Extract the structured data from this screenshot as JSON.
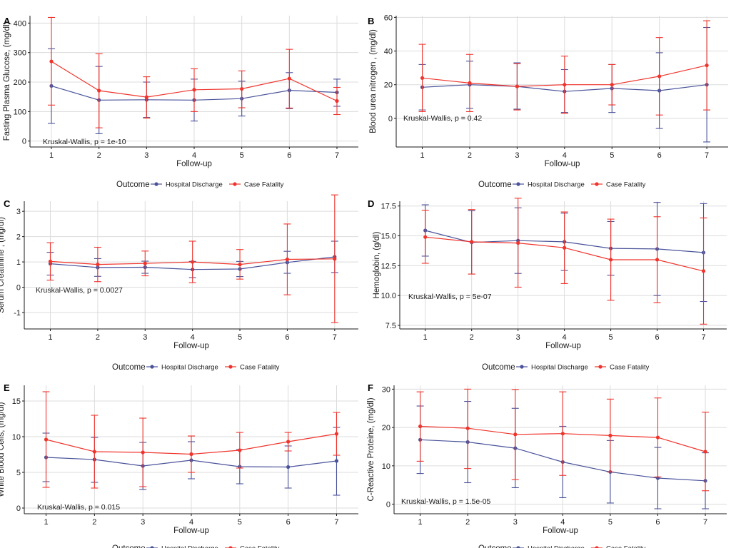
{
  "colors": {
    "hospital_discharge": "#4a539a",
    "case_fatality": "#f0342c",
    "grid": "#dcdcdc",
    "axis": "#1a1a1a"
  },
  "legend": {
    "title": "Outcome",
    "items": [
      "Hospital Discharge",
      "Case Fatality"
    ]
  },
  "chart_data": [
    {
      "panel": "A",
      "type": "line",
      "grid": true,
      "legend_position": "bottom",
      "xlabel": "Follow-up",
      "ylabel": "Fasting Plasma Glucose, (mg/dl)",
      "annotation": "Kruskal-Wallis, p = 1e-10",
      "x": [
        1,
        2,
        3,
        4,
        5,
        6,
        7
      ],
      "xlim": [
        0.55,
        7.45
      ],
      "ylim": [
        -20,
        425
      ],
      "yticks": [
        0,
        100,
        200,
        300,
        400
      ],
      "ytick_labels": [
        "0",
        "100",
        "200",
        "300",
        "400"
      ],
      "series": [
        {
          "name": "Hospital Discharge",
          "values": [
            187,
            139,
            140,
            139,
            144,
            172,
            165
          ],
          "lower": [
            60,
            25,
            80,
            68,
            85,
            110,
            118
          ],
          "upper": [
            313,
            253,
            200,
            210,
            203,
            232,
            210
          ]
        },
        {
          "name": "Case Fatality",
          "values": [
            270,
            171,
            149,
            174,
            177,
            212,
            136
          ],
          "lower": [
            122,
            45,
            78,
            100,
            113,
            112,
            90
          ],
          "upper": [
            419,
            296,
            218,
            245,
            238,
            311,
            182
          ]
        }
      ]
    },
    {
      "panel": "B",
      "type": "line",
      "grid": true,
      "legend_position": "bottom",
      "xlabel": "Follow-up",
      "ylabel": "Blood urea nitrogen , (mg/dl)",
      "annotation": "Kruskal-Wallis, p = 0.42",
      "x": [
        1,
        2,
        3,
        4,
        5,
        6,
        7
      ],
      "xlim": [
        0.45,
        7.45
      ],
      "ylim": [
        -17,
        61
      ],
      "yticks": [
        0,
        20,
        40,
        60
      ],
      "ytick_labels": [
        "0",
        "20",
        "40",
        "60"
      ],
      "series": [
        {
          "name": "Hospital Discharge",
          "values": [
            18.5,
            20,
            19,
            16,
            17.8,
            16.5,
            20
          ],
          "lower": [
            5,
            6,
            5.5,
            3.5,
            3.5,
            -6,
            -14
          ],
          "upper": [
            32,
            34,
            33,
            29,
            32,
            39,
            54
          ]
        },
        {
          "name": "Case Fatality",
          "values": [
            24,
            21,
            19,
            20,
            20,
            25,
            31.5
          ],
          "lower": [
            4,
            4,
            5,
            3,
            8,
            2,
            5
          ],
          "upper": [
            44,
            38,
            32.5,
            37,
            32,
            48,
            58
          ]
        }
      ]
    },
    {
      "panel": "C",
      "type": "line",
      "grid": true,
      "legend_position": "bottom",
      "xlabel": "Follow-up",
      "ylabel": "Serum Creatinine , (mg/dl)",
      "annotation": "Kruskal-Wallis, p = 0.0027",
      "x": [
        1,
        2,
        3,
        4,
        5,
        6,
        7
      ],
      "xlim": [
        0.45,
        7.5
      ],
      "ylim": [
        -1.65,
        3.4
      ],
      "yticks": [
        -1,
        0,
        1,
        2,
        3
      ],
      "ytick_labels": [
        "-1",
        "0",
        "1",
        "2",
        "3"
      ],
      "series": [
        {
          "name": "Hospital Discharge",
          "values": [
            0.93,
            0.78,
            0.79,
            0.7,
            0.72,
            0.98,
            1.2
          ],
          "lower": [
            0.48,
            0.43,
            0.55,
            0.38,
            0.42,
            0.55,
            0.58
          ],
          "upper": [
            1.38,
            1.13,
            1.03,
            1.02,
            1.02,
            1.42,
            1.82
          ]
        },
        {
          "name": "Case Fatality",
          "values": [
            1.02,
            0.9,
            0.94,
            1.0,
            0.9,
            1.1,
            1.12
          ],
          "lower": [
            0.28,
            0.22,
            0.45,
            0.18,
            0.32,
            -0.3,
            -1.4
          ],
          "upper": [
            1.76,
            1.58,
            1.43,
            1.82,
            1.49,
            2.5,
            3.65
          ]
        }
      ]
    },
    {
      "panel": "D",
      "type": "line",
      "grid": true,
      "legend_position": "bottom",
      "xlabel": "Follow-up",
      "ylabel": "Hemoglobin, (g/dl)",
      "annotation": "Kruskal-Wallis, p = 5e-07",
      "x": [
        1,
        2,
        3,
        4,
        5,
        6,
        7
      ],
      "xlim": [
        0.45,
        7.5
      ],
      "ylim": [
        7.2,
        17.9
      ],
      "yticks": [
        7.5,
        10,
        12.5,
        15,
        17.5
      ],
      "ytick_labels": [
        "7.5",
        "10.0",
        "12.5",
        "15.0",
        "17.5"
      ],
      "series": [
        {
          "name": "Hospital Discharge",
          "values": [
            15.45,
            14.45,
            14.6,
            14.5,
            13.95,
            13.9,
            13.6
          ],
          "lower": [
            13.3,
            11.8,
            11.85,
            12.1,
            11.7,
            10.0,
            9.5
          ],
          "upper": [
            17.6,
            17.1,
            17.35,
            16.9,
            16.2,
            17.8,
            17.7
          ]
        },
        {
          "name": "Case Fatality",
          "values": [
            14.9,
            14.5,
            14.4,
            14.0,
            13.0,
            13.0,
            12.05
          ],
          "lower": [
            12.7,
            11.8,
            10.7,
            11.0,
            9.6,
            9.4,
            7.6
          ],
          "upper": [
            17.15,
            17.2,
            18.15,
            17.0,
            16.4,
            16.6,
            16.5
          ]
        }
      ]
    },
    {
      "panel": "E",
      "type": "line",
      "grid": true,
      "legend_position": "bottom",
      "xlabel": "Follow-up",
      "ylabel": "White Blood Cells, (mg/dl)",
      "annotation": "Kruskal-Wallis, p = 0.015",
      "x": [
        1,
        2,
        3,
        4,
        5,
        6,
        7
      ],
      "xlim": [
        0.55,
        7.45
      ],
      "ylim": [
        -0.8,
        17.2
      ],
      "yticks": [
        0,
        5,
        10,
        15
      ],
      "ytick_labels": [
        "0",
        "5",
        "10",
        "15"
      ],
      "series": [
        {
          "name": "Hospital Discharge",
          "values": [
            7.1,
            6.8,
            5.9,
            6.7,
            5.8,
            5.75,
            6.6
          ],
          "lower": [
            3.7,
            3.6,
            2.6,
            4.1,
            3.4,
            2.8,
            1.8
          ],
          "upper": [
            10.5,
            9.9,
            9.2,
            9.3,
            8.2,
            8.7,
            11.3
          ]
        },
        {
          "name": "Case Fatality",
          "values": [
            9.6,
            7.9,
            7.8,
            7.55,
            8.1,
            9.3,
            10.4
          ],
          "lower": [
            2.9,
            2.8,
            3.0,
            5.0,
            5.6,
            8.0,
            7.4
          ],
          "upper": [
            16.3,
            13.0,
            12.6,
            10.1,
            10.6,
            10.6,
            13.4
          ]
        }
      ]
    },
    {
      "panel": "F",
      "type": "line",
      "grid": true,
      "legend_position": "bottom",
      "xlabel": "Follow-up",
      "ylabel": "C-Reactive Proteine, (mg/dl)",
      "annotation": "Kruskal-Wallis, p = 1.5e-05",
      "x": [
        1,
        2,
        3,
        4,
        5,
        6,
        7
      ],
      "xlim": [
        0.45,
        7.45
      ],
      "ylim": [
        -2.5,
        31
      ],
      "yticks": [
        0,
        10,
        20,
        30
      ],
      "ytick_labels": [
        "0",
        "10",
        "20",
        "30"
      ],
      "series": [
        {
          "name": "Hospital Discharge",
          "values": [
            16.8,
            16.2,
            14.6,
            11.0,
            8.4,
            6.8,
            6.1
          ],
          "lower": [
            8.0,
            5.6,
            4.3,
            1.7,
            0.3,
            -1.2,
            -1.2
          ],
          "upper": [
            25.6,
            26.8,
            25.0,
            20.3,
            16.6,
            14.8,
            13.4
          ]
        },
        {
          "name": "Case Fatality",
          "values": [
            20.3,
            19.8,
            18.2,
            18.4,
            17.9,
            17.4,
            13.7
          ],
          "lower": [
            11.2,
            9.3,
            6.4,
            7.5,
            8.4,
            7.1,
            3.5
          ],
          "upper": [
            29.3,
            30.0,
            29.9,
            29.3,
            27.4,
            27.7,
            24.0
          ]
        }
      ]
    }
  ]
}
